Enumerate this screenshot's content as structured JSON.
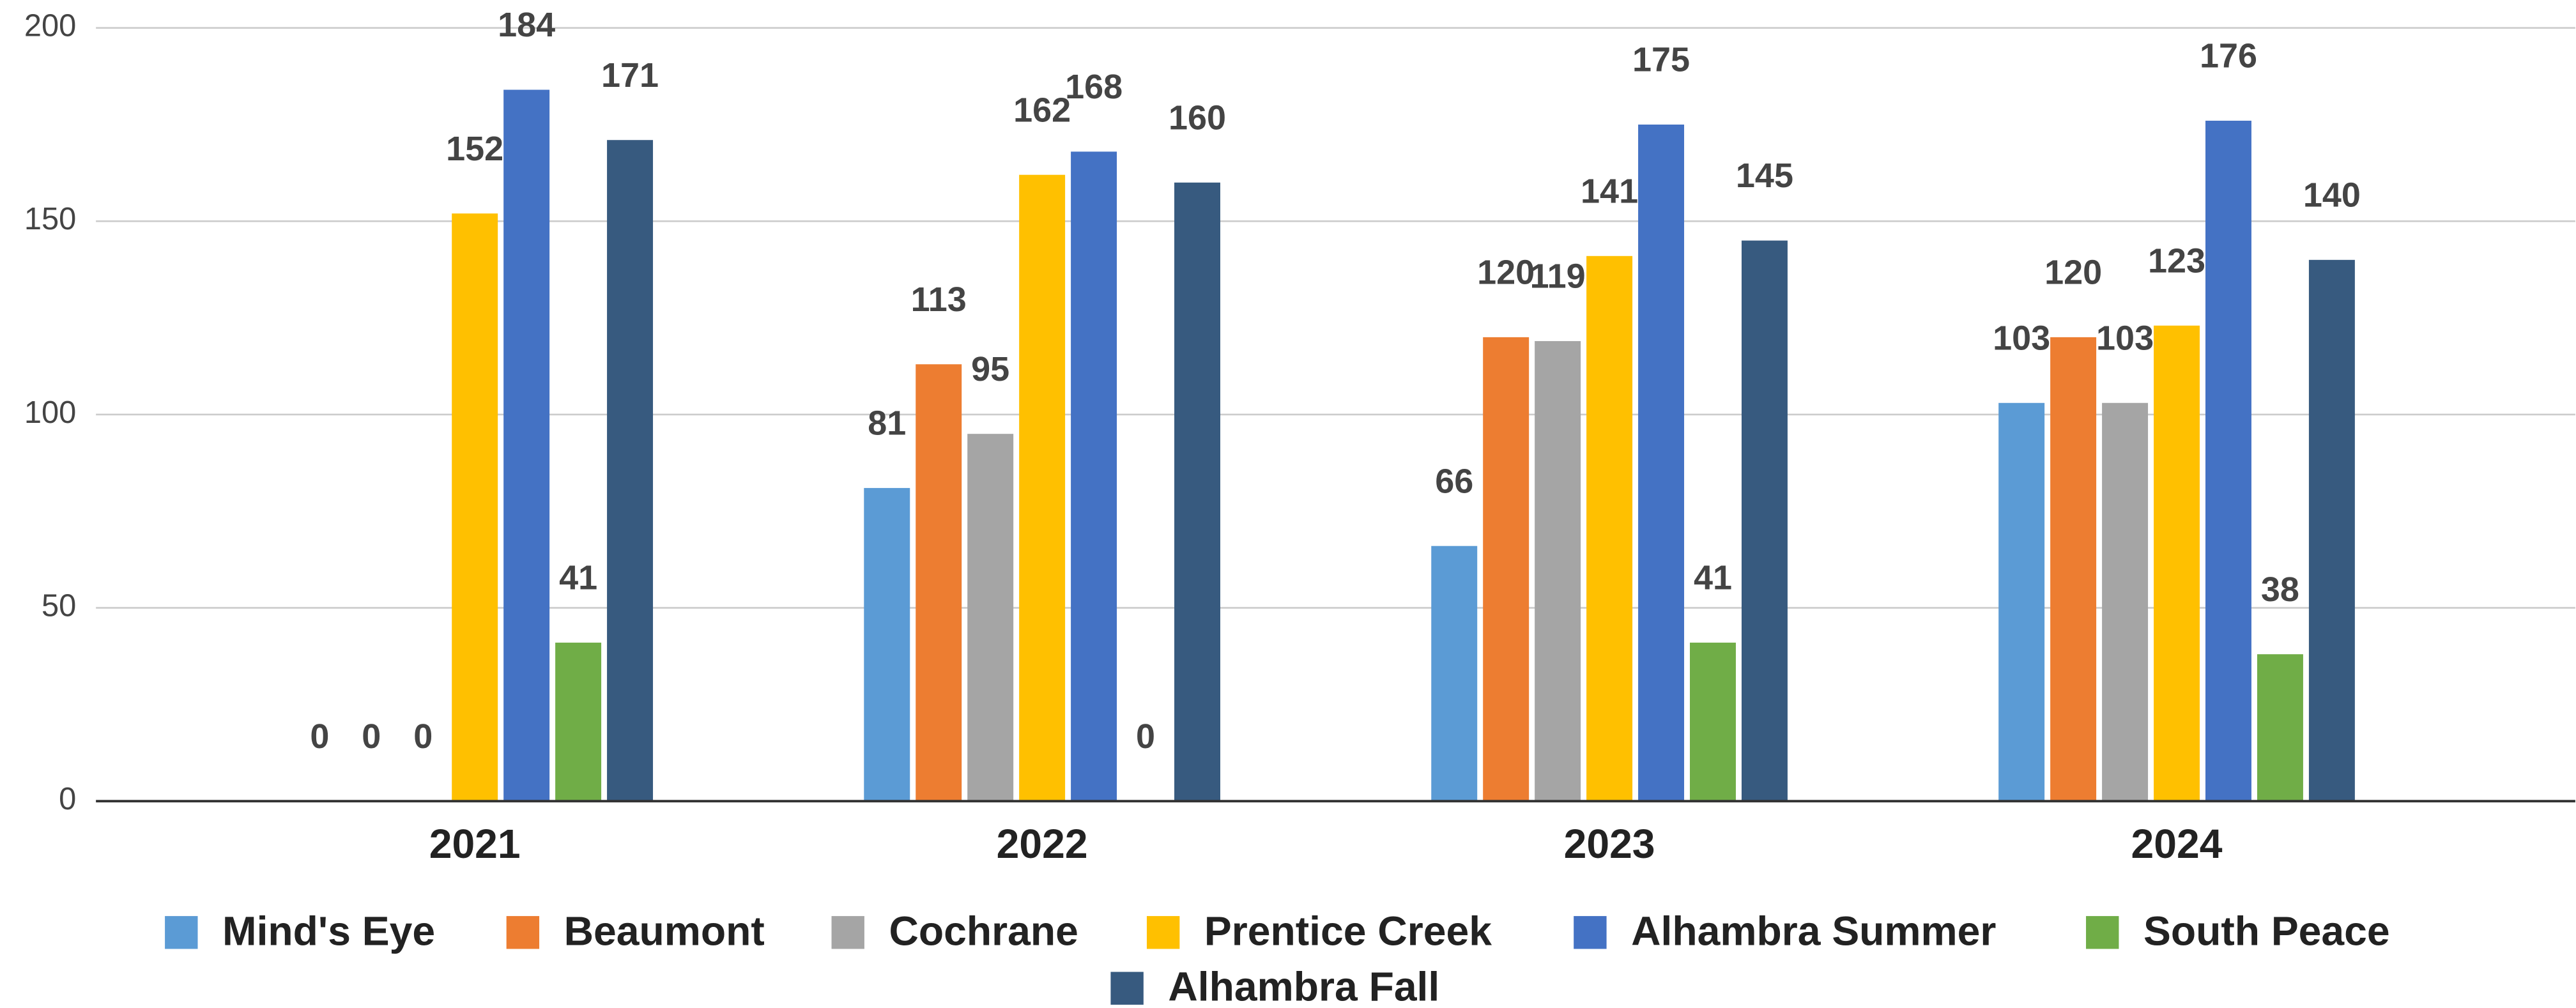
{
  "chart_data": {
    "type": "bar",
    "categories": [
      "2021",
      "2022",
      "2023",
      "2024"
    ],
    "series": [
      {
        "name": "Mind's Eye",
        "color": "#5b9bd5",
        "values": [
          0,
          81,
          66,
          103
        ]
      },
      {
        "name": "Beaumont",
        "color": "#ed7d31",
        "values": [
          0,
          113,
          120,
          120
        ]
      },
      {
        "name": "Cochrane",
        "color": "#a5a5a5",
        "values": [
          0,
          95,
          119,
          103
        ]
      },
      {
        "name": "Prentice Creek",
        "color": "#ffc000",
        "values": [
          152,
          162,
          141,
          123
        ]
      },
      {
        "name": "Alhambra Summer",
        "color": "#4472c4",
        "values": [
          184,
          168,
          175,
          176
        ]
      },
      {
        "name": "South Peace",
        "color": "#70ad47",
        "values": [
          41,
          0,
          41,
          38
        ]
      },
      {
        "name": "Alhambra Fall",
        "color": "#375a7f",
        "values": [
          171,
          160,
          145,
          140
        ]
      }
    ],
    "ylim": [
      0,
      200
    ],
    "yticks": [
      0,
      50,
      100,
      150,
      200
    ],
    "grid": true,
    "legend": "bottom"
  }
}
